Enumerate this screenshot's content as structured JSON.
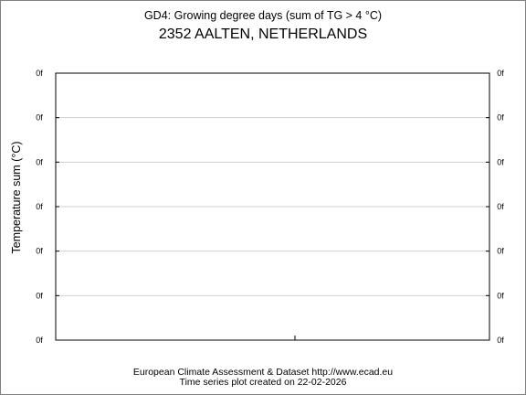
{
  "chart_data": {
    "type": "line",
    "title": "GD4: Growing degree days (sum of TG > 4 °C)",
    "subtitle": "2352 AALTEN, NETHERLANDS",
    "ylabel": "Temperature sum (°C)",
    "xlabel": "",
    "y_tick_labels": [
      "0f",
      "0f",
      "0f",
      "0f",
      "0f",
      "0f",
      "0f"
    ],
    "grid": true,
    "series": []
  },
  "footer": {
    "line1": "European Climate Assessment & Dataset  http://www.ecad.eu",
    "line2": "Time series plot created on 22-02-2026"
  }
}
